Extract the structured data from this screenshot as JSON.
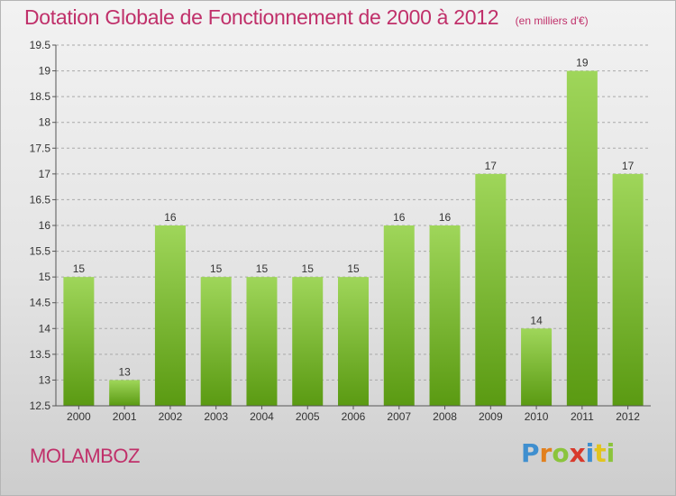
{
  "header": {
    "title": "Dotation Globale de Fonctionnement de 2000 à 2012",
    "unit": "(en milliers d'€)"
  },
  "footer": {
    "commune": "MOLAMBOZ",
    "logo_letters": [
      {
        "char": "P",
        "color": "#3f8fcf"
      },
      {
        "char": "r",
        "color": "#e2801e"
      },
      {
        "char": "o",
        "color": "#8bc43c"
      },
      {
        "char": "x",
        "color": "#d8392b"
      },
      {
        "char": "i",
        "color": "#3f8fcf"
      },
      {
        "char": "t",
        "color": "#e2c41e"
      },
      {
        "char": "i",
        "color": "#8bc43c"
      }
    ]
  },
  "colors": {
    "title": "#c0306a",
    "bar_top": "#9fd65a",
    "bar_bottom": "#5a9a12",
    "grid": "#a9a9a9",
    "axis": "#555555"
  },
  "chart_data": {
    "type": "bar",
    "title": "Dotation Globale de Fonctionnement de 2000 à 2012",
    "xlabel": "",
    "ylabel": "",
    "categories": [
      "2000",
      "2001",
      "2002",
      "2003",
      "2004",
      "2005",
      "2006",
      "2007",
      "2008",
      "2009",
      "2010",
      "2011",
      "2012"
    ],
    "values": [
      15,
      13,
      16,
      15,
      15,
      15,
      15,
      16,
      16,
      17,
      14,
      19,
      17
    ],
    "value_labels": [
      "15",
      "13",
      "16",
      "15",
      "15",
      "15",
      "15",
      "16",
      "16",
      "17",
      "14",
      "19",
      "17"
    ],
    "ylim": [
      12.5,
      19.5
    ],
    "yticks": [
      "12.5",
      "13",
      "13.5",
      "14",
      "14.5",
      "15",
      "15.5",
      "16",
      "16.5",
      "17",
      "17.5",
      "18",
      "18.5",
      "19",
      "19.5"
    ],
    "grid": true,
    "legend": "none"
  }
}
